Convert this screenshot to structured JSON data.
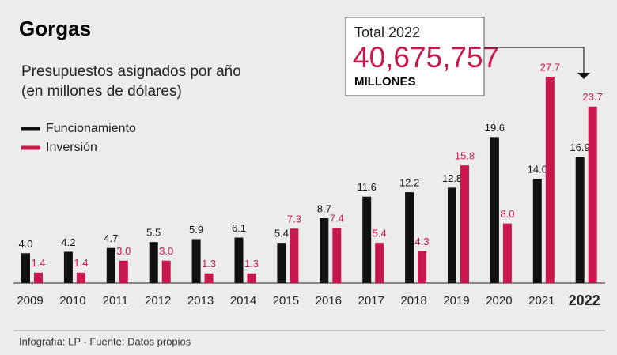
{
  "chart_data": {
    "type": "bar",
    "title": "Gorgas",
    "subtitle": [
      "Presupuestos asignados por año",
      "(en millones de dólares)"
    ],
    "categories": [
      "2009",
      "2010",
      "2011",
      "2012",
      "2013",
      "2014",
      "2015",
      "2016",
      "2017",
      "2018",
      "2019",
      "2020",
      "2021",
      "2022"
    ],
    "series": [
      {
        "name": "Funcionamiento",
        "color": "#111111",
        "values": [
          4.0,
          4.2,
          4.7,
          5.5,
          5.9,
          6.1,
          5.4,
          8.7,
          11.6,
          12.2,
          12.8,
          19.6,
          14.0,
          16.9
        ],
        "value_labels": [
          "4.0",
          "4.2",
          "4.7",
          "5.5",
          "5.9",
          "6.1",
          "5.4",
          "8.7",
          "11.6",
          "12.2",
          "12.8",
          "19.6",
          "14.0",
          "16.9"
        ]
      },
      {
        "name": "Inversión",
        "color": "#c8174a",
        "values": [
          1.4,
          1.4,
          3.0,
          3.0,
          1.3,
          1.3,
          7.3,
          7.4,
          5.4,
          4.3,
          15.8,
          8.0,
          27.7,
          23.7
        ],
        "value_labels": [
          "1.4",
          "1.4",
          "3.0",
          "3.0",
          "1.3",
          "1.3",
          "7.3",
          "7.4",
          "5.4",
          "4.3",
          "15.8",
          "8.0",
          "27.7",
          "23.7"
        ]
      }
    ],
    "annotation": {
      "label": "Total 2022",
      "value": "40,675,757",
      "unit": "MILLONES"
    },
    "source": "Infografía: LP - Fuente: Datos propios"
  }
}
